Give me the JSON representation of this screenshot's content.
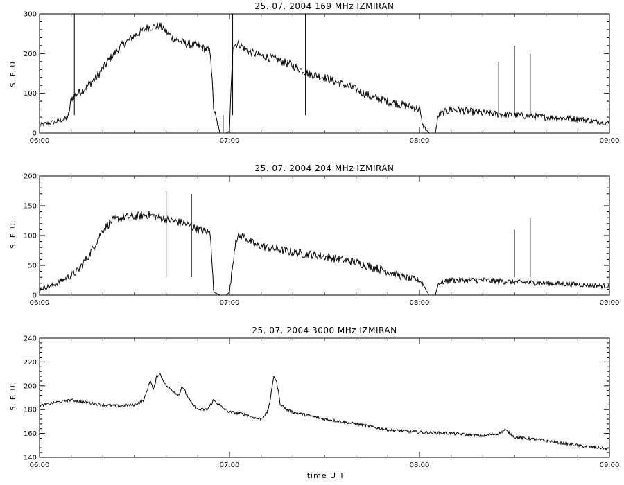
{
  "chart_data": [
    {
      "type": "line",
      "title": "25.  07.  2004    169 MHz    IZMIRAN",
      "ylabel": "S. F. U.",
      "xlabel": "",
      "ylim": [
        0,
        300
      ],
      "yticks": [
        0,
        100,
        200,
        300
      ],
      "xlim": [
        "06:00",
        "09:00"
      ],
      "xticks": [
        "06:00",
        "07:00",
        "08:00",
        "09:00"
      ],
      "series": [
        {
          "x": [
            "06:00",
            "06:05",
            "06:09",
            "06:10",
            "06:11",
            "06:14",
            "06:18",
            "06:22",
            "06:26",
            "06:30",
            "06:34",
            "06:38",
            "06:42",
            "06:46",
            "06:50",
            "06:54",
            "06:55",
            "06:57",
            "06:59",
            "07:00",
            "07:01",
            "07:03",
            "07:06",
            "07:10",
            "07:15",
            "07:20",
            "07:25",
            "07:30",
            "07:35",
            "07:40",
            "07:45",
            "07:50",
            "07:55",
            "07:58",
            "08:00",
            "08:01",
            "08:03",
            "08:05",
            "08:06",
            "08:10",
            "08:15",
            "08:20",
            "08:30",
            "08:40",
            "08:50",
            "09:00"
          ],
          "values": [
            20,
            28,
            38,
            85,
            95,
            110,
            140,
            185,
            220,
            245,
            265,
            270,
            240,
            225,
            220,
            205,
            60,
            0,
            0,
            5,
            220,
            225,
            205,
            195,
            185,
            170,
            150,
            140,
            125,
            110,
            90,
            80,
            70,
            65,
            60,
            20,
            0,
            0,
            45,
            60,
            55,
            50,
            45,
            40,
            35,
            25
          ]
        }
      ],
      "spikes": [
        {
          "x": "06:11",
          "value": 300
        },
        {
          "x": "06:58",
          "value": 0
        },
        {
          "x": "07:01",
          "value": 300
        },
        {
          "x": "07:24",
          "value": 300
        },
        {
          "x": "08:25",
          "value": 180
        },
        {
          "x": "08:30",
          "value": 220
        },
        {
          "x": "08:35",
          "value": 200
        }
      ]
    },
    {
      "type": "line",
      "title": "25.  07.  2004    204 MHz    IZMIRAN",
      "ylabel": "S. F. U.",
      "xlabel": "",
      "ylim": [
        0,
        200
      ],
      "yticks": [
        0,
        50,
        100,
        150,
        200
      ],
      "xlim": [
        "06:00",
        "09:00"
      ],
      "xticks": [
        "06:00",
        "07:00",
        "08:00",
        "09:00"
      ],
      "series": [
        {
          "x": [
            "06:00",
            "06:05",
            "06:09",
            "06:12",
            "06:16",
            "06:20",
            "06:23",
            "06:26",
            "06:30",
            "06:34",
            "06:38",
            "06:42",
            "06:46",
            "06:50",
            "06:54",
            "06:55",
            "06:57",
            "06:59",
            "07:00",
            "07:02",
            "07:04",
            "07:08",
            "07:12",
            "07:20",
            "07:30",
            "07:40",
            "07:50",
            "07:55",
            "08:00",
            "08:01",
            "08:03",
            "08:05",
            "08:06",
            "08:10",
            "08:20",
            "08:30",
            "08:40",
            "08:50",
            "09:00"
          ],
          "values": [
            10,
            18,
            30,
            40,
            70,
            110,
            125,
            130,
            132,
            135,
            130,
            125,
            120,
            110,
            105,
            5,
            0,
            0,
            5,
            95,
            100,
            85,
            80,
            72,
            65,
            55,
            40,
            30,
            25,
            20,
            0,
            0,
            20,
            25,
            25,
            22,
            20,
            18,
            15
          ]
        }
      ],
      "spikes": [
        {
          "x": "06:40",
          "value": 175
        },
        {
          "x": "06:48",
          "value": 170
        },
        {
          "x": "08:30",
          "value": 110
        },
        {
          "x": "08:35",
          "value": 130
        }
      ]
    },
    {
      "type": "line",
      "title": "25.  07.  2004    3000 MHz    IZMIRAN",
      "ylabel": "S. F. U.",
      "xlabel": "time  U T",
      "ylim": [
        140,
        240
      ],
      "yticks": [
        140,
        160,
        180,
        200,
        220,
        240
      ],
      "xlim": [
        "06:00",
        "09:00"
      ],
      "xticks": [
        "06:00",
        "07:00",
        "08:00",
        "09:00"
      ],
      "series": [
        {
          "x": [
            "06:00",
            "06:05",
            "06:10",
            "06:15",
            "06:20",
            "06:25",
            "06:30",
            "06:33",
            "06:35",
            "06:36",
            "06:37",
            "06:38",
            "06:40",
            "06:42",
            "06:44",
            "06:45",
            "06:48",
            "06:50",
            "06:53",
            "06:55",
            "06:58",
            "07:00",
            "07:05",
            "07:08",
            "07:10",
            "07:12",
            "07:13",
            "07:14",
            "07:15",
            "07:16",
            "07:18",
            "07:20",
            "07:30",
            "07:40",
            "07:50",
            "08:00",
            "08:10",
            "08:20",
            "08:25",
            "08:27",
            "08:30",
            "08:40",
            "08:50",
            "09:00"
          ],
          "values": [
            183,
            186,
            188,
            186,
            184,
            183,
            184,
            188,
            205,
            196,
            208,
            210,
            200,
            196,
            192,
            200,
            185,
            180,
            180,
            188,
            181,
            178,
            176,
            173,
            172,
            178,
            190,
            209,
            202,
            185,
            180,
            178,
            172,
            168,
            163,
            161,
            160,
            158,
            160,
            163,
            157,
            154,
            150,
            147
          ]
        }
      ],
      "spikes": []
    }
  ]
}
